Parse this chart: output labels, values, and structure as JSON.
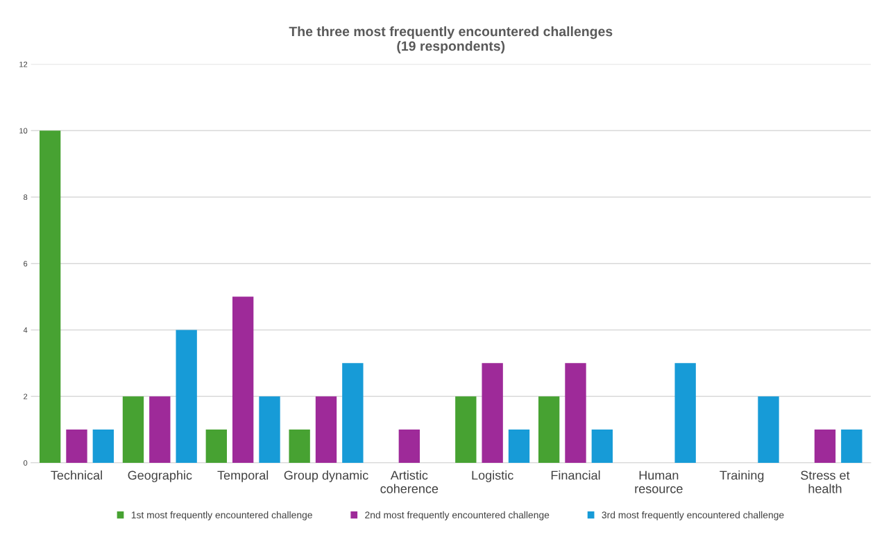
{
  "chart_data": {
    "type": "bar",
    "title": "The three most frequently encountered challenges\n(19 respondents)",
    "categories": [
      "Technical",
      "Geographic",
      "Temporal",
      "Group dynamic",
      "Artistic\ncoherence",
      "Logistic",
      "Financial",
      "Human\nresource",
      "Training",
      "Stress et\nhealth"
    ],
    "series": [
      {
        "name": "1st most frequently encountered challenge",
        "color": "#47a232",
        "values": [
          10,
          2,
          1,
          1,
          0,
          2,
          2,
          0,
          0,
          0
        ]
      },
      {
        "name": "2nd most frequently encountered challenge",
        "color": "#9e2a99",
        "values": [
          1,
          2,
          5,
          2,
          1,
          3,
          3,
          0,
          0,
          1
        ]
      },
      {
        "name": "3rd most frequently encountered challenge",
        "color": "#179bd7",
        "values": [
          1,
          4,
          2,
          3,
          0,
          1,
          1,
          3,
          2,
          1
        ]
      }
    ],
    "ylim": [
      0,
      12
    ],
    "yticks": [
      0,
      2,
      4,
      6,
      8,
      10,
      12
    ],
    "grid": "y",
    "legend": "bottom"
  }
}
